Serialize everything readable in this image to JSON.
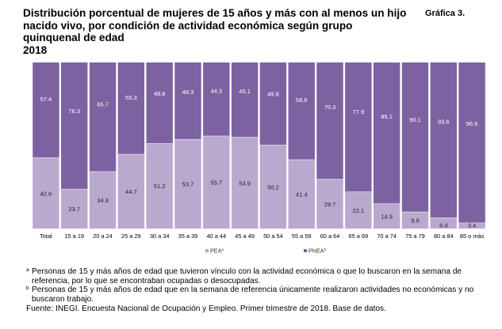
{
  "header": {
    "title_lines": [
      "Distribución porcentual de mujeres de 15 años y más con al menos un hijo",
      "nacido vivo, por condición de actividad económica según grupo",
      "quinquenal de edad",
      "2018"
    ],
    "figure_label": "Gráfica 3."
  },
  "colors": {
    "PEA": "#b9a9cf",
    "PNEA": "#7d62a2",
    "label_on_dark": "#ffffff",
    "label_on_light": "#222222"
  },
  "chart_data": {
    "type": "bar",
    "stacked": true,
    "percent_stacked": true,
    "title": "Distribución porcentual de mujeres de 15 años y más con al menos un hijo nacido vivo, por condición de actividad económica según grupo quinquenal de edad 2018",
    "xlabel": "",
    "ylabel": "",
    "ylim": [
      0,
      100
    ],
    "grid": false,
    "legend_position": "bottom",
    "categories": [
      "Total",
      "15 a 19",
      "20 a 24",
      "25 a 29",
      "30 a 34",
      "35 a 39",
      "40 a 44",
      "45 a 49",
      "50 a 54",
      "55 a 59",
      "60 a 64",
      "65 a 69",
      "70 a 74",
      "75 a 79",
      "80 a 84",
      "85 o más"
    ],
    "series": [
      {
        "name": "PEA",
        "legend_label": "PEA",
        "superscript": "a",
        "values": [
          42.6,
          23.7,
          34.3,
          44.7,
          51.2,
          53.7,
          55.7,
          54.9,
          50.2,
          41.4,
          29.7,
          22.1,
          14.9,
          9.9,
          6.4,
          3.4
        ]
      },
      {
        "name": "PNEA",
        "legend_label": "PNEA",
        "superscript": "b",
        "values": [
          57.4,
          76.3,
          65.7,
          55.3,
          48.8,
          46.3,
          44.3,
          45.1,
          49.8,
          58.6,
          70.3,
          77.9,
          85.1,
          90.1,
          93.6,
          96.6
        ]
      }
    ]
  },
  "footnotes": [
    {
      "mark": "a",
      "text": "Personas de 15 y más años de edad que tuvieron vínculo con la actividad económica o que lo buscaron en la semana de referencia, por lo que se encontraban ocupadas o desocupadas."
    },
    {
      "mark": "b",
      "text": "Personas de 15 y más años de edad que en la semana de referencia únicamente realizaron actividades no económicas y no buscaron trabajo."
    }
  ],
  "source": "Fuente: INEGI. Encuesta Nacional de Ocupación y Empleo. Primer trimestre de 2018. Base de datos."
}
